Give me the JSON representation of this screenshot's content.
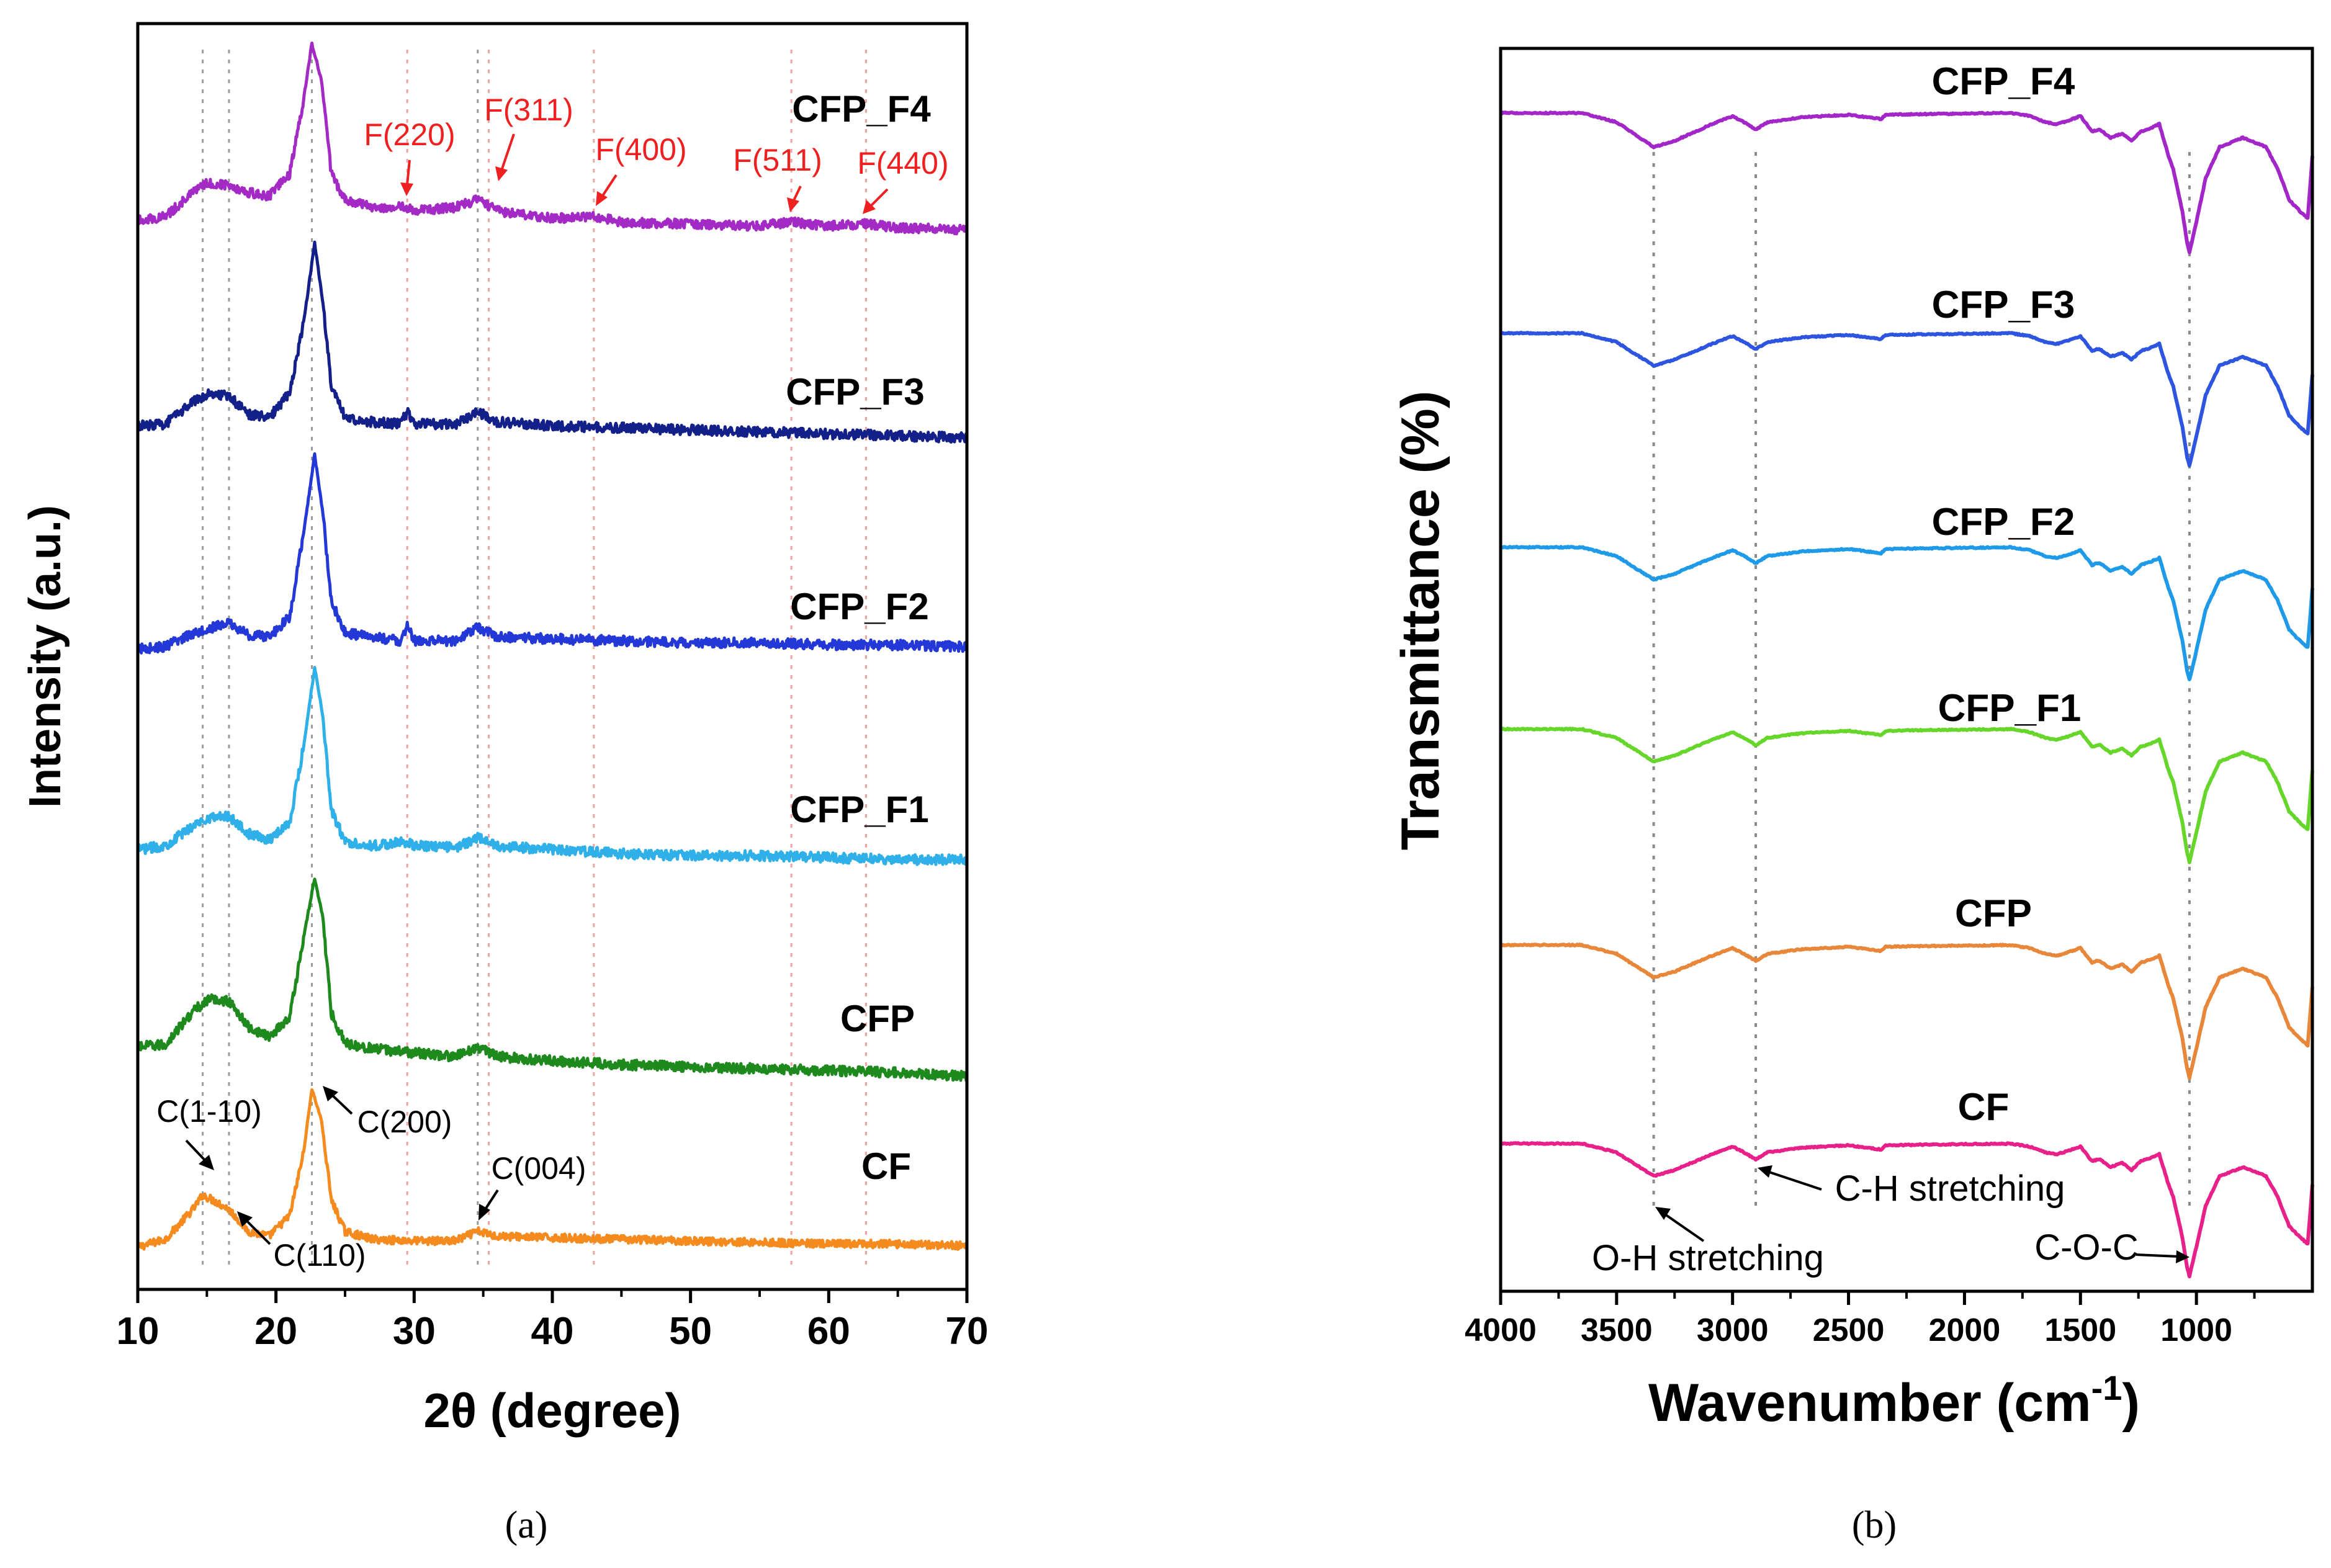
{
  "panels": [
    {
      "id": "a",
      "caption": "(a)",
      "chart_data": {
        "type": "line",
        "title": "",
        "xlabel": "2θ (degree)",
        "ylabel": "Intensity (a.u.)",
        "xlim": [
          10,
          70
        ],
        "xticks": [
          10,
          20,
          30,
          40,
          50,
          60,
          70
        ],
        "xtick_labels": [
          "10",
          "20",
          "30",
          "40",
          "50",
          "60",
          "70"
        ],
        "y_ticks_shown": false,
        "grid": false,
        "reference_lines": [
          {
            "x": 14.7,
            "color": "#9a9a9a"
          },
          {
            "x": 16.6,
            "color": "#9a9a9a"
          },
          {
            "x": 22.6,
            "color": "#9a9a9a"
          },
          {
            "x": 34.6,
            "color": "#9a9a9a"
          },
          {
            "x": 29.5,
            "color": "#f4a3a3"
          },
          {
            "x": 35.4,
            "color": "#f4a3a3"
          },
          {
            "x": 43.0,
            "color": "#f4a3a3"
          },
          {
            "x": 57.3,
            "color": "#f4a3a3"
          },
          {
            "x": 62.7,
            "color": "#f4a3a3"
          }
        ],
        "series": [
          {
            "name": "CF",
            "color": "#f58a1f",
            "x": [
              10,
              12,
              14,
              14.7,
              15.6,
              16.6,
              18,
              19.5,
              21,
              22.0,
              22.6,
              23.3,
              24,
              25,
              27,
              30,
              33,
              34.6,
              36,
              40,
              45,
              50,
              55,
              60,
              65,
              70
            ],
            "y": [
              0.0,
              0.05,
              0.24,
              0.33,
              0.29,
              0.24,
              0.1,
              0.07,
              0.2,
              0.6,
              1.0,
              0.8,
              0.3,
              0.1,
              0.05,
              0.04,
              0.04,
              0.1,
              0.07,
              0.06,
              0.05,
              0.04,
              0.03,
              0.02,
              0.02,
              0.01
            ]
          },
          {
            "name": "CFP",
            "color": "#1e8a1e",
            "x": [
              10,
              12,
              14,
              15.2,
              16.6,
              18,
              19.5,
              21,
              22.0,
              22.8,
              23.4,
              24,
              25,
              27,
              30,
              33,
              34.6,
              36,
              40,
              45,
              50,
              55,
              60,
              65,
              70
            ],
            "y": [
              0.15,
              0.16,
              0.33,
              0.39,
              0.38,
              0.25,
              0.2,
              0.3,
              0.7,
              1.0,
              0.8,
              0.32,
              0.17,
              0.14,
              0.12,
              0.1,
              0.15,
              0.1,
              0.08,
              0.06,
              0.05,
              0.04,
              0.03,
              0.02,
              0.0
            ]
          },
          {
            "name": "CFP_F1",
            "color": "#2fb0e8",
            "x": [
              10,
              12,
              14,
              15.0,
              16.6,
              18,
              19.5,
              21,
              22.0,
              22.8,
              23.4,
              24,
              25,
              27,
              29.5,
              30,
              33,
              34.6,
              36,
              40,
              45,
              50,
              55,
              60,
              65,
              70
            ],
            "y": [
              0.08,
              0.1,
              0.2,
              0.24,
              0.25,
              0.16,
              0.13,
              0.22,
              0.6,
              1.0,
              0.75,
              0.28,
              0.12,
              0.1,
              0.12,
              0.1,
              0.09,
              0.14,
              0.1,
              0.08,
              0.06,
              0.05,
              0.05,
              0.04,
              0.03,
              0.03
            ]
          },
          {
            "name": "CFP_F2",
            "color": "#2438d8",
            "x": [
              10,
              12,
              14,
              15.0,
              16.6,
              18,
              19.5,
              21,
              22.0,
              22.8,
              23.4,
              24,
              25,
              27,
              29.0,
              29.5,
              30,
              33,
              34.6,
              36,
              40,
              45,
              50,
              55,
              60,
              65,
              70
            ],
            "y": [
              0.02,
              0.03,
              0.1,
              0.12,
              0.15,
              0.09,
              0.08,
              0.18,
              0.6,
              1.0,
              0.7,
              0.26,
              0.1,
              0.08,
              0.06,
              0.13,
              0.06,
              0.06,
              0.13,
              0.08,
              0.07,
              0.06,
              0.05,
              0.05,
              0.04,
              0.04,
              0.03
            ]
          },
          {
            "name": "CFP_F3",
            "color": "#14208a",
            "x": [
              10,
              12,
              14,
              15.2,
              16.6,
              18,
              19.5,
              21,
              22.0,
              22.8,
              23.4,
              24,
              25,
              27,
              29.0,
              29.5,
              30,
              33,
              34.6,
              36,
              40,
              45,
              50,
              55,
              60,
              65,
              70
            ],
            "y": [
              0.08,
              0.09,
              0.2,
              0.25,
              0.23,
              0.14,
              0.12,
              0.25,
              0.6,
              1.0,
              0.7,
              0.28,
              0.12,
              0.1,
              0.09,
              0.15,
              0.09,
              0.09,
              0.15,
              0.1,
              0.08,
              0.07,
              0.06,
              0.05,
              0.04,
              0.03,
              0.02
            ]
          },
          {
            "name": "CFP_F4",
            "color": "#a32ac4",
            "x": [
              10,
              12,
              14,
              15.0,
              16.6,
              18,
              19.5,
              21,
              22.0,
              22.6,
              23.3,
              24,
              25,
              27,
              29.5,
              30,
              33,
              34.6,
              35.4,
              36,
              40,
              43,
              45,
              50,
              55,
              57.3,
              60,
              62.7,
              65,
              70
            ],
            "y": [
              0.05,
              0.07,
              0.2,
              0.25,
              0.24,
              0.2,
              0.18,
              0.3,
              0.7,
              1.0,
              0.8,
              0.3,
              0.16,
              0.12,
              0.12,
              0.1,
              0.12,
              0.16,
              0.13,
              0.1,
              0.06,
              0.07,
              0.04,
              0.03,
              0.02,
              0.04,
              0.02,
              0.03,
              0.01,
              0.0
            ]
          }
        ],
        "series_labels": [
          "CF",
          "CFP",
          "CFP_F1",
          "CFP_F2",
          "CFP_F3",
          "CFP_F4"
        ],
        "annotations_black": [
          {
            "text": "C(1-10)",
            "x": 14.7
          },
          {
            "text": "C(110)",
            "x": 16.6
          },
          {
            "text": "C(200)",
            "x": 22.6
          },
          {
            "text": "C(004)",
            "x": 34.6
          }
        ],
        "annotations_red": [
          {
            "text": "F(220)",
            "x": 29.5
          },
          {
            "text": "F(311)",
            "x": 35.4
          },
          {
            "text": "F(400)",
            "x": 43.0
          },
          {
            "text": "F(511)",
            "x": 57.3
          },
          {
            "text": "F(440)",
            "x": 62.7
          }
        ]
      }
    },
    {
      "id": "b",
      "caption": "(b)",
      "chart_data": {
        "type": "line",
        "title": "",
        "xlabel": "Wavenumber (cm",
        "xlabel_superscript": "-1",
        "xlabel_suffix": ")",
        "ylabel": "Transmittance (%)",
        "xlim": [
          4000,
          500
        ],
        "x_reversed": true,
        "xticks": [
          4000,
          3500,
          3000,
          2500,
          2000,
          1500,
          1000
        ],
        "xtick_labels": [
          "4000",
          "3500",
          "3000",
          "2500",
          "2000",
          "1500",
          "1000"
        ],
        "y_ticks_shown": false,
        "grid": false,
        "reference_lines": [
          {
            "x": 3340,
            "color": "#8a8a8a"
          },
          {
            "x": 2900,
            "color": "#8a8a8a"
          },
          {
            "x": 1030,
            "color": "#8a8a8a"
          }
        ],
        "series": [
          {
            "name": "CF",
            "color": "#e8218a"
          },
          {
            "name": "CFP",
            "color": "#e8863a"
          },
          {
            "name": "CFP_F1",
            "color": "#66d62a"
          },
          {
            "name": "CFP_F2",
            "color": "#1f9ae8"
          },
          {
            "name": "CFP_F3",
            "color": "#2e55e0"
          },
          {
            "name": "CFP_F4",
            "color": "#a326c8"
          }
        ],
        "spectrum_shape": {
          "x": [
            4000,
            3800,
            3650,
            3500,
            3400,
            3340,
            3250,
            3100,
            3000,
            2950,
            2900,
            2850,
            2700,
            2500,
            2360,
            2340,
            2200,
            2000,
            1800,
            1720,
            1650,
            1600,
            1550,
            1500,
            1450,
            1420,
            1370,
            1320,
            1280,
            1240,
            1200,
            1160,
            1120,
            1100,
            1060,
            1040,
            1030,
            1000,
            960,
            900,
            800,
            700,
            650,
            600,
            550,
            520,
            500
          ],
          "y": [
            1.0,
            1.0,
            1.0,
            0.85,
            0.6,
            0.45,
            0.55,
            0.8,
            0.95,
            0.85,
            0.73,
            0.85,
            0.93,
            0.97,
            0.9,
            0.97,
            0.98,
            0.99,
            1.0,
            0.95,
            0.85,
            0.82,
            0.88,
            0.95,
            0.7,
            0.74,
            0.6,
            0.67,
            0.55,
            0.7,
            0.75,
            0.82,
            0.3,
            0.1,
            -0.6,
            -1.1,
            -1.25,
            -0.75,
            -0.05,
            0.45,
            0.6,
            0.45,
            0.1,
            -0.4,
            -0.6,
            -0.7,
            0.3
          ]
        },
        "series_labels": [
          "CF",
          "CFP",
          "CFP_F1",
          "CFP_F2",
          "CFP_F3",
          "CFP_F4"
        ],
        "annotations": [
          {
            "text": "O-H stretching",
            "x": 3340
          },
          {
            "text": "C-H stretching",
            "x": 2900
          },
          {
            "text": "C-O-C",
            "x": 1030
          }
        ]
      }
    }
  ]
}
